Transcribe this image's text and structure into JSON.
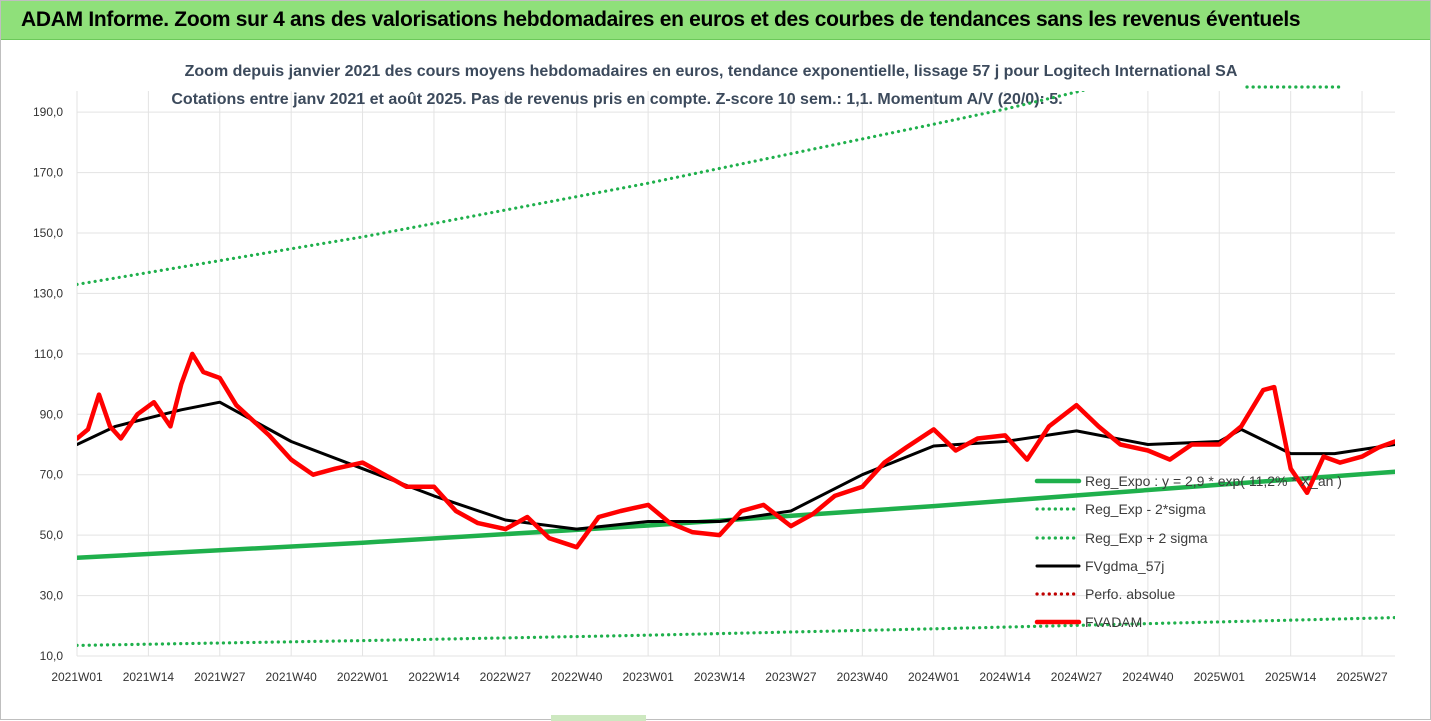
{
  "banner": {
    "title": "ADAM Informe. Zoom sur 4 ans des valorisations hebdomadaires en euros et des courbes de tendances sans les revenus éventuels"
  },
  "colors": {
    "banner_bg": "#8fe07a",
    "trend": "#1fb04c",
    "band": "#1fb04c",
    "smooth": "#000000",
    "price": "#ff0000",
    "perf": "#c00000",
    "grid": "#e3e3e3"
  },
  "chart_data": {
    "type": "line",
    "title": "Zoom depuis janvier 2021 des cours moyens hebdomadaires en euros, tendance exponentielle, lissage 57 j pour Logitech International SA",
    "subtitle": "Cotations entre janv 2021 et août 2025.  Pas de revenus pris en compte. Z-score 10 sem.: 1,1. Momentum A/V (20/0): 5.",
    "xlabel": "",
    "ylabel": "",
    "ylim": [
      10,
      197
    ],
    "x_ticks": [
      "2021W01",
      "2021W14",
      "2021W27",
      "2021W40",
      "2022W01",
      "2022W14",
      "2022W27",
      "2022W40",
      "2023W01",
      "2023W14",
      "2023W27",
      "2023W40",
      "2024W01",
      "2024W14",
      "2024W27",
      "2024W40",
      "2025W01",
      "2025W14",
      "2025W27"
    ],
    "y_ticks": [
      10,
      30,
      50,
      70,
      90,
      110,
      130,
      150,
      170,
      190
    ],
    "y_tick_labels": [
      "10,0",
      "30,0",
      "50,0",
      "70,0",
      "90,0",
      "110,0",
      "130,0",
      "150,0",
      "170,0",
      "190,0"
    ],
    "grid": true,
    "legend_position": "right",
    "series": [
      {
        "name": "Reg_Expo : y = 2,9 * exp( 11,2% * X_an )",
        "style": "solid-thick",
        "color": "#1fb04c",
        "x": [
          "2021W01",
          "2022W01",
          "2023W01",
          "2024W01",
          "2025W01",
          "2025W33"
        ],
        "values": [
          42.5,
          47.5,
          53.2,
          59.6,
          66.7,
          71.0
        ]
      },
      {
        "name": "Reg_Exp - 2*sigma",
        "style": "dotted",
        "color": "#1fb04c",
        "x": [
          "2021W01",
          "2022W01",
          "2023W01",
          "2024W01",
          "2025W01",
          "2025W33"
        ],
        "values": [
          13.5,
          15.1,
          16.9,
          19.0,
          21.3,
          22.7
        ]
      },
      {
        "name": "Reg_Exp + 2 sigma",
        "style": "dotted",
        "color": "#1fb04c",
        "x": [
          "2021W01",
          "2022W01",
          "2023W01",
          "2024W01",
          "2024W14",
          "2025W33"
        ],
        "values": [
          133.0,
          148.7,
          166.5,
          186.0,
          191.0,
          222.0
        ]
      },
      {
        "name": "FVgdma_57j",
        "style": "solid",
        "color": "#000000",
        "x": [
          "2021W01",
          "2021W08",
          "2021W20",
          "2021W27",
          "2021W40",
          "2022W01",
          "2022W14",
          "2022W27",
          "2022W40",
          "2023W01",
          "2023W14",
          "2023W27",
          "2023W40",
          "2024W01",
          "2024W14",
          "2024W27",
          "2024W40",
          "2025W01",
          "2025W05",
          "2025W14",
          "2025W22",
          "2025W33"
        ],
        "values": [
          80.0,
          86.0,
          91.5,
          94.0,
          81.0,
          72.0,
          63.0,
          55.0,
          52.0,
          54.5,
          54.5,
          58.0,
          70.0,
          79.5,
          81.0,
          84.5,
          80.0,
          81.0,
          85.0,
          77.0,
          77.0,
          80.0
        ]
      },
      {
        "name": "Perfo. absolue",
        "style": "dotted",
        "color": "#c00000",
        "x": [],
        "values": []
      },
      {
        "name": "FVADAM",
        "style": "solid-thick",
        "color": "#ff0000",
        "x": [
          "2021W01",
          "2021W03",
          "2021W05",
          "2021W07",
          "2021W09",
          "2021W12",
          "2021W15",
          "2021W18",
          "2021W20",
          "2021W22",
          "2021W24",
          "2021W27",
          "2021W30",
          "2021W33",
          "2021W36",
          "2021W40",
          "2021W44",
          "2021W48",
          "2022W01",
          "2022W05",
          "2022W09",
          "2022W14",
          "2022W18",
          "2022W22",
          "2022W27",
          "2022W31",
          "2022W35",
          "2022W40",
          "2022W44",
          "2022W48",
          "2023W01",
          "2023W05",
          "2023W09",
          "2023W14",
          "2023W18",
          "2023W22",
          "2023W27",
          "2023W31",
          "2023W35",
          "2023W40",
          "2023W44",
          "2023W48",
          "2024W01",
          "2024W05",
          "2024W09",
          "2024W14",
          "2024W18",
          "2024W22",
          "2024W27",
          "2024W31",
          "2024W35",
          "2024W40",
          "2024W44",
          "2024W48",
          "2025W01",
          "2025W05",
          "2025W09",
          "2025W11",
          "2025W14",
          "2025W17",
          "2025W20",
          "2025W23",
          "2025W27",
          "2025W30",
          "2025W33"
        ],
        "values": [
          82.0,
          85.0,
          96.5,
          86.0,
          82.0,
          90.0,
          94.0,
          86.0,
          100.0,
          110.0,
          104.0,
          102.0,
          93.0,
          88.0,
          83.0,
          75.0,
          70.0,
          72.0,
          74.0,
          70.0,
          66.0,
          66.0,
          58.0,
          54.0,
          52.0,
          56.0,
          49.0,
          46.0,
          56.0,
          58.0,
          60.0,
          54.0,
          51.0,
          50.0,
          58.0,
          60.0,
          53.0,
          57.0,
          63.0,
          66.0,
          74.0,
          79.0,
          85.0,
          78.0,
          82.0,
          83.0,
          75.0,
          86.0,
          93.0,
          86.0,
          80.0,
          78.0,
          75.0,
          80.0,
          80.0,
          86.0,
          98.0,
          99.0,
          72.0,
          64.0,
          76.0,
          74.0,
          76.0,
          79.0,
          81.0
        ]
      }
    ]
  }
}
